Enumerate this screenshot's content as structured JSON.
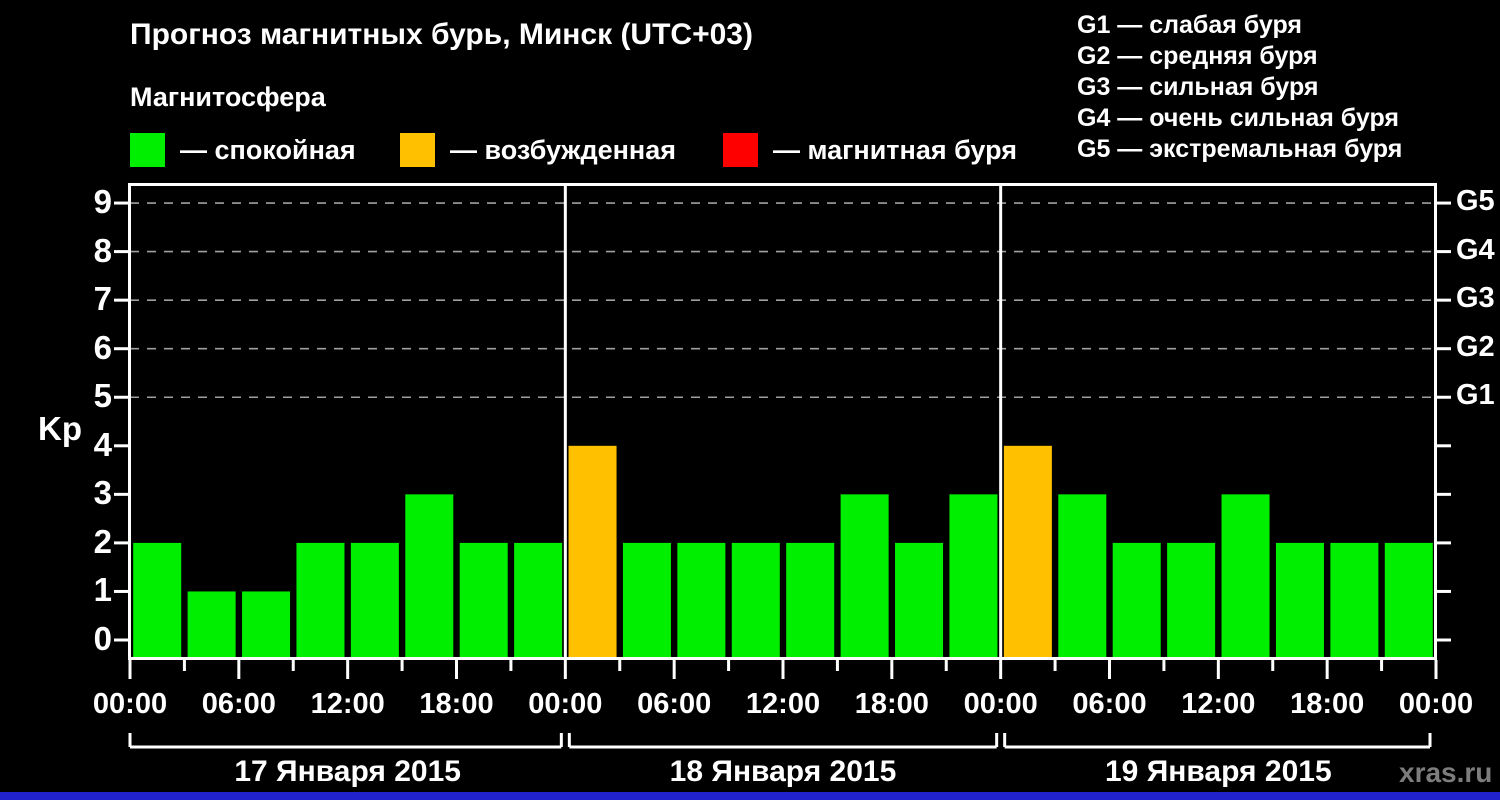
{
  "header": {
    "title": "Прогноз магнитных бурь, Минск (UTC+03)",
    "subtitle": "Магнитосфера"
  },
  "legend": {
    "items": [
      {
        "name": "quiet",
        "label": "— спокойная",
        "color": "#00ee00"
      },
      {
        "name": "excited",
        "label": "— возбужденная",
        "color": "#ffc000"
      },
      {
        "name": "storm",
        "label": "— магнитная буря",
        "color": "#ff0000"
      }
    ]
  },
  "storm_scale": {
    "items": [
      "G1 — слабая буря",
      "G2 — средняя буря",
      "G3 — сильная буря",
      "G4 — очень сильная буря",
      "G5 — экстремальная буря"
    ]
  },
  "watermark": "xras.ru",
  "chart_data": {
    "type": "bar",
    "title": "Прогноз магнитных бурь, Минск (UTC+03)",
    "ylabel": "Kp",
    "ylim": [
      0,
      9
    ],
    "yticks": [
      0,
      1,
      2,
      3,
      4,
      5,
      6,
      7,
      8,
      9
    ],
    "grid_levels": [
      5,
      6,
      7,
      8,
      9
    ],
    "grid_on": true,
    "right_axis": [
      {
        "kp": 5,
        "label": "G1"
      },
      {
        "kp": 6,
        "label": "G2"
      },
      {
        "kp": 7,
        "label": "G3"
      },
      {
        "kp": 8,
        "label": "G4"
      },
      {
        "kp": 9,
        "label": "G5"
      }
    ],
    "x_tick_labels": [
      "00:00",
      "06:00",
      "12:00",
      "18:00",
      "00:00",
      "06:00",
      "12:00",
      "18:00",
      "00:00",
      "06:00",
      "12:00",
      "18:00",
      "00:00"
    ],
    "hours_per_bar": 3,
    "days": [
      {
        "date": "17 Января 2015",
        "values": [
          2,
          1,
          1,
          2,
          2,
          3,
          2,
          2
        ]
      },
      {
        "date": "18 Января 2015",
        "values": [
          4,
          2,
          2,
          2,
          2,
          3,
          2,
          3
        ]
      },
      {
        "date": "19 Января 2015",
        "values": [
          4,
          3,
          2,
          2,
          3,
          2,
          2,
          2
        ]
      }
    ],
    "color_rules": {
      "quiet_max_kp": 3,
      "excited_kp": 4,
      "storm_min_kp": 5
    },
    "colors": {
      "quiet": "#00ee00",
      "excited": "#ffc000",
      "storm": "#ff0000",
      "grid": "#a0a0a0",
      "axis": "#ffffff",
      "background": "#000000"
    }
  }
}
